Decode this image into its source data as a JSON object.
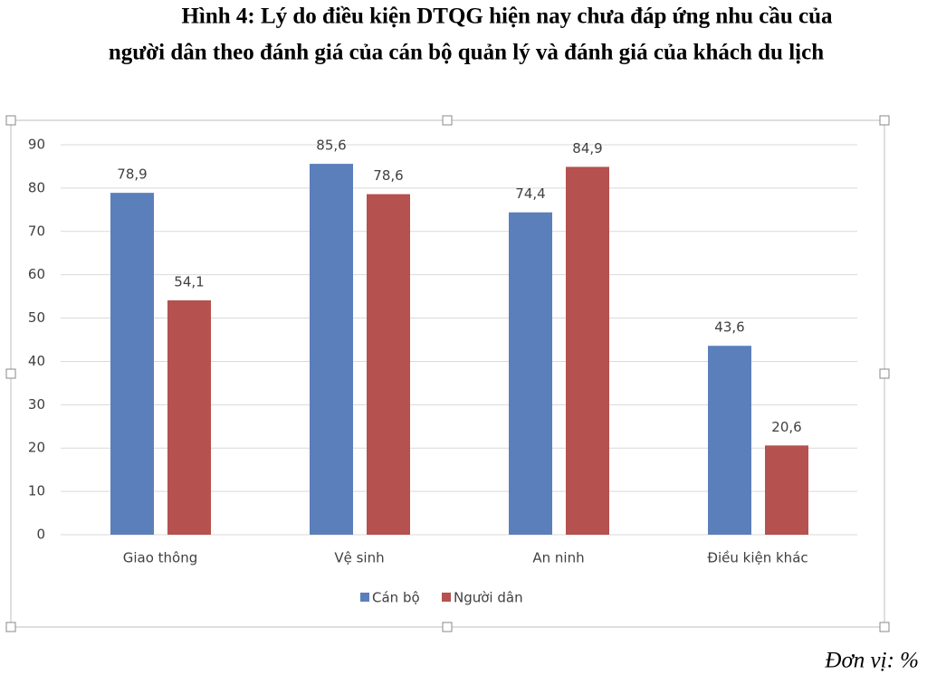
{
  "chart_data": {
    "type": "bar",
    "title_lines": [
      "Hình 4: Lý do điều kiện DTQG hiện nay chưa đáp ứng nhu cầu của",
      "người dân theo đánh giá của cán bộ quản lý và đánh giá của khách du lịch"
    ],
    "note": "Đơn vị: %",
    "categories": [
      "Giao thông",
      "Vệ sinh",
      "An ninh",
      "Điều kiện khác"
    ],
    "series": [
      {
        "name": "Cán bộ",
        "color": "#5b7fbb",
        "values": [
          78.9,
          85.6,
          74.4,
          43.6
        ],
        "value_labels": [
          "78,9",
          "85,6",
          "74,4",
          "43,6"
        ]
      },
      {
        "name": "Người dân",
        "color": "#b5514e",
        "values": [
          54.1,
          78.6,
          84.9,
          20.6
        ],
        "value_labels": [
          "54,1",
          "78,6",
          "84,9",
          "20,6"
        ]
      }
    ],
    "ylim": [
      0,
      90
    ],
    "yticks": [
      0,
      10,
      20,
      30,
      40,
      50,
      60,
      70,
      80,
      90
    ],
    "grid": true,
    "legend": "bottom"
  }
}
